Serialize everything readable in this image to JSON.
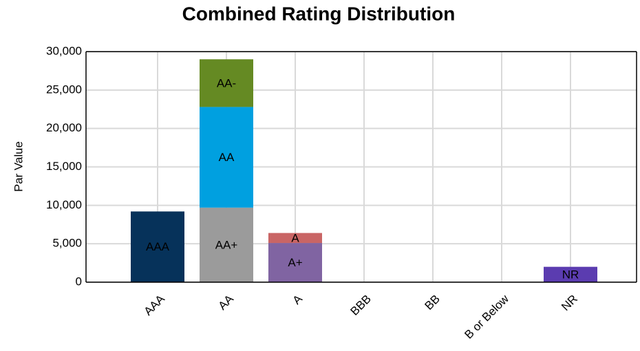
{
  "chart_data": {
    "type": "bar",
    "stacked": true,
    "title": "Combined Rating Distribution",
    "y_label": "Par Value",
    "categories": [
      "AAA",
      "AA",
      "A",
      "BBB",
      "BB",
      "B or Below",
      "NR"
    ],
    "series": [
      {
        "name": "AAA",
        "color": "#06325a",
        "values": [
          9200,
          null,
          null,
          null,
          null,
          null,
          null
        ]
      },
      {
        "name": "AA+",
        "color": "#9b9b9b",
        "values": [
          null,
          9700,
          null,
          null,
          null,
          null,
          null
        ]
      },
      {
        "name": "AA",
        "color": "#00a0e0",
        "values": [
          null,
          13100,
          null,
          null,
          null,
          null,
          null
        ]
      },
      {
        "name": "AA-",
        "color": "#658a23",
        "values": [
          null,
          6200,
          null,
          null,
          null,
          null,
          null
        ]
      },
      {
        "name": "A+",
        "color": "#8064a2",
        "values": [
          null,
          null,
          5100,
          null,
          null,
          null,
          null
        ]
      },
      {
        "name": "A",
        "color": "#c96565",
        "values": [
          null,
          null,
          1300,
          null,
          null,
          null,
          null
        ]
      },
      {
        "name": "NR",
        "color": "#5b3cb0",
        "values": [
          null,
          null,
          null,
          null,
          null,
          null,
          2000
        ]
      }
    ],
    "ylim": [
      0,
      30000
    ],
    "yticks": [
      0,
      {
        "value": 5000,
        "label": "5,000"
      },
      {
        "value": 10000,
        "label": "10,000"
      },
      {
        "value": 15000,
        "label": "15,000"
      },
      {
        "value": 20000,
        "label": "20,000"
      },
      {
        "value": 25000,
        "label": "25,000"
      },
      {
        "value": 30000,
        "label": "30,000"
      }
    ],
    "grid": true
  }
}
